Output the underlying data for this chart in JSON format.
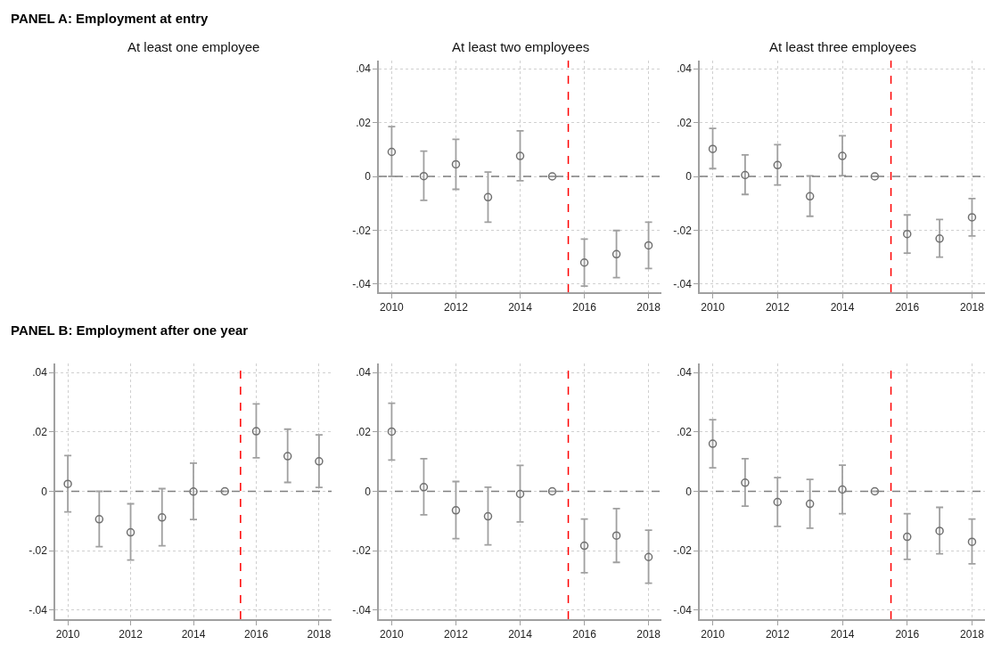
{
  "chart_data": [
    {
      "type": "scatter",
      "title": "At least two employees",
      "annotations": [
        "PANEL A: Employment at entry"
      ],
      "x": [
        2010,
        2011,
        2012,
        2013,
        2014,
        2015,
        2016,
        2017,
        2018
      ],
      "series": [
        {
          "color": "#707070",
          "values": [
            0.0091,
            0.0001,
            0.0045,
            -0.0077,
            0.0076,
            0,
            -0.032,
            -0.0289,
            -0.0256
          ],
          "errors": [
            [
              0.0,
              0.0185
            ],
            [
              -0.0089,
              0.0094
            ],
            [
              -0.0048,
              0.0138
            ],
            [
              -0.017,
              0.0016
            ],
            [
              -0.0016,
              0.0169
            ],
            null,
            [
              -0.0407,
              -0.0233
            ],
            [
              -0.0376,
              -0.0201
            ],
            [
              -0.0342,
              -0.017
            ]
          ]
        }
      ],
      "xlim": [
        2009.6,
        2018.4
      ],
      "xticks": [
        2010,
        2012,
        2014,
        2016,
        2018
      ],
      "ylim": [
        -0.043,
        0.043
      ],
      "yticks": [
        {
          "value": -0.04,
          "label": "-.04"
        },
        {
          "value": -0.02,
          "label": "-.02"
        },
        0,
        {
          "value": 0.02,
          "label": ".02"
        },
        {
          "value": 0.04,
          "label": ".04"
        }
      ],
      "ref_lines": [
        {
          "axis": "y",
          "value": 0,
          "color": "#808080",
          "line_style": "dashed"
        },
        {
          "axis": "x",
          "value": 2015.5,
          "color": "#ff0000",
          "line_style": "dashed"
        }
      ],
      "grid": true,
      "marker": "circle"
    },
    {
      "type": "scatter",
      "title": "At least three employees",
      "x": [
        2010,
        2011,
        2012,
        2013,
        2014,
        2015,
        2016,
        2017,
        2018
      ],
      "series": [
        {
          "color": "#707070",
          "values": [
            0.0102,
            0.0005,
            0.0042,
            -0.0074,
            0.0076,
            0,
            -0.0214,
            -0.0231,
            -0.0152
          ],
          "errors": [
            [
              0.0029,
              0.0178
            ],
            [
              -0.0067,
              0.008
            ],
            [
              -0.0032,
              0.0118
            ],
            [
              -0.0148,
              0.0002
            ],
            [
              0.0003,
              0.0151
            ],
            null,
            [
              -0.0285,
              -0.0143
            ],
            [
              -0.03,
              -0.016
            ],
            [
              -0.0221,
              -0.0082
            ]
          ]
        }
      ],
      "xlim": [
        2009.6,
        2018.4
      ],
      "xticks": [
        2010,
        2012,
        2014,
        2016,
        2018
      ],
      "ylim": [
        -0.043,
        0.043
      ],
      "yticks": [
        {
          "value": -0.04,
          "label": "-.04"
        },
        {
          "value": -0.02,
          "label": "-.02"
        },
        0,
        {
          "value": 0.02,
          "label": ".02"
        },
        {
          "value": 0.04,
          "label": ".04"
        }
      ],
      "ref_lines": [
        {
          "axis": "y",
          "value": 0,
          "color": "#808080",
          "line_style": "dashed"
        },
        {
          "axis": "x",
          "value": 2015.5,
          "color": "#ff0000",
          "line_style": "dashed"
        }
      ],
      "grid": true,
      "marker": "circle"
    },
    {
      "type": "scatter",
      "title": "At least one employee",
      "annotations": [
        "PANEL B: Employment after one year"
      ],
      "x": [
        2010,
        2011,
        2012,
        2013,
        2014,
        2015,
        2016,
        2017,
        2018
      ],
      "series": [
        {
          "color": "#707070",
          "values": [
            0.0025,
            -0.0094,
            -0.0138,
            -0.0088,
            -0.0001,
            0,
            0.0202,
            0.0118,
            0.0101
          ],
          "errors": [
            [
              -0.0069,
              0.012
            ],
            [
              -0.0186,
              0.0
            ],
            [
              -0.0231,
              -0.0042
            ],
            [
              -0.0183,
              0.0009
            ],
            [
              -0.0095,
              0.0095
            ],
            null,
            [
              0.0113,
              0.0294
            ],
            [
              0.003,
              0.0209
            ],
            [
              0.0013,
              0.019
            ]
          ]
        }
      ],
      "xlim": [
        2009.6,
        2018.4
      ],
      "xticks": [
        2010,
        2012,
        2014,
        2016,
        2018
      ],
      "ylim": [
        -0.043,
        0.043
      ],
      "yticks": [
        {
          "value": -0.04,
          "label": "-.04"
        },
        {
          "value": -0.02,
          "label": "-.02"
        },
        0,
        {
          "value": 0.02,
          "label": ".02"
        },
        {
          "value": 0.04,
          "label": ".04"
        }
      ],
      "ref_lines": [
        {
          "axis": "y",
          "value": 0,
          "color": "#808080",
          "line_style": "dashed"
        },
        {
          "axis": "x",
          "value": 2015.5,
          "color": "#ff0000",
          "line_style": "dashed"
        }
      ],
      "grid": true,
      "marker": "circle"
    },
    {
      "type": "scatter",
      "x": [
        2010,
        2011,
        2012,
        2013,
        2014,
        2015,
        2016,
        2017,
        2018
      ],
      "series": [
        {
          "color": "#707070",
          "values": [
            0.0201,
            0.0014,
            -0.0064,
            -0.0084,
            -0.0009,
            0,
            -0.0183,
            -0.0149,
            -0.0221
          ],
          "errors": [
            [
              0.0105,
              0.0296
            ],
            [
              -0.0079,
              0.011
            ],
            [
              -0.0159,
              0.0033
            ],
            [
              -0.018,
              0.0014
            ],
            [
              -0.0103,
              0.0087
            ],
            null,
            [
              -0.0274,
              -0.0093
            ],
            [
              -0.0239,
              -0.0058
            ],
            [
              -0.0309,
              -0.0131
            ]
          ]
        }
      ],
      "xlim": [
        2009.6,
        2018.4
      ],
      "xticks": [
        2010,
        2012,
        2014,
        2016,
        2018
      ],
      "ylim": [
        -0.043,
        0.043
      ],
      "yticks": [
        {
          "value": -0.04,
          "label": "-.04"
        },
        {
          "value": -0.02,
          "label": "-.02"
        },
        0,
        {
          "value": 0.02,
          "label": ".02"
        },
        {
          "value": 0.04,
          "label": ".04"
        }
      ],
      "ref_lines": [
        {
          "axis": "y",
          "value": 0,
          "color": "#808080",
          "line_style": "dashed"
        },
        {
          "axis": "x",
          "value": 2015.5,
          "color": "#ff0000",
          "line_style": "dashed"
        }
      ],
      "grid": true,
      "marker": "circle"
    },
    {
      "type": "scatter",
      "x": [
        2010,
        2011,
        2012,
        2013,
        2014,
        2015,
        2016,
        2017,
        2018
      ],
      "series": [
        {
          "color": "#707070",
          "values": [
            0.016,
            0.0029,
            -0.0036,
            -0.0042,
            0.0006,
            0,
            -0.0153,
            -0.0133,
            -0.017
          ],
          "errors": [
            [
              0.0079,
              0.0241
            ],
            [
              -0.005,
              0.011
            ],
            [
              -0.0118,
              0.0046
            ],
            [
              -0.0124,
              0.004
            ],
            [
              -0.0075,
              0.0088
            ],
            null,
            [
              -0.0229,
              -0.0075
            ],
            [
              -0.021,
              -0.0054
            ],
            [
              -0.0244,
              -0.0093
            ]
          ]
        }
      ],
      "xlim": [
        2009.6,
        2018.4
      ],
      "xticks": [
        2010,
        2012,
        2014,
        2016,
        2018
      ],
      "ylim": [
        -0.043,
        0.043
      ],
      "yticks": [
        {
          "value": -0.04,
          "label": "-.04"
        },
        {
          "value": -0.02,
          "label": "-.02"
        },
        0,
        {
          "value": 0.02,
          "label": ".02"
        },
        {
          "value": 0.04,
          "label": ".04"
        }
      ],
      "ref_lines": [
        {
          "axis": "y",
          "value": 0,
          "color": "#808080",
          "line_style": "dashed"
        },
        {
          "axis": "x",
          "value": 2015.5,
          "color": "#ff0000",
          "line_style": "dashed"
        }
      ],
      "grid": true,
      "marker": "circle"
    }
  ]
}
